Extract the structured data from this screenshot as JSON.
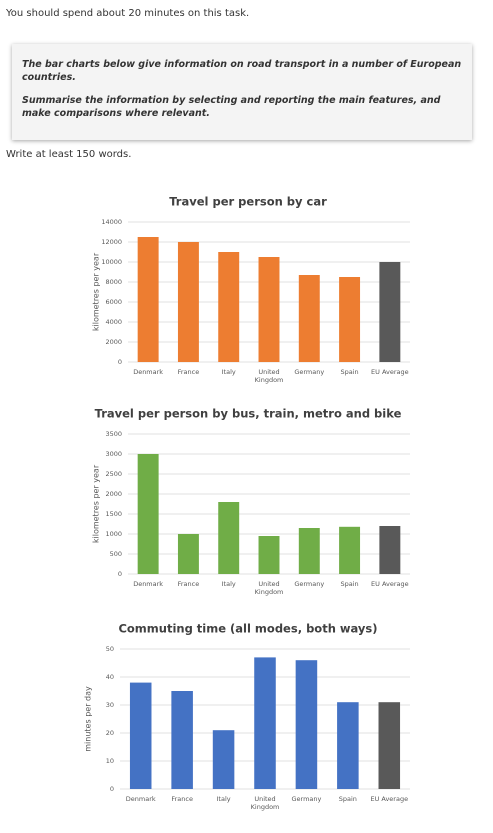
{
  "instruction": "You should spend about 20 minutes on this task.",
  "task_box": {
    "paragraphs": [
      "The bar charts below give information on road transport in a number of European countries.",
      "Summarise the information by selecting and reporting the main features, and make comparisons where relevant."
    ]
  },
  "word_count_note": "Write at least 150 words.",
  "chart_data": [
    {
      "type": "bar",
      "title": "Travel per person by car",
      "y_label": "kilometres per year",
      "categories": [
        "Denmark",
        "France",
        "Italy",
        "United Kingdom",
        "Germany",
        "Spain",
        "EU Average"
      ],
      "values": [
        12500,
        12000,
        11000,
        10500,
        8700,
        8500,
        10000
      ],
      "colors": [
        "#ed7d31",
        "#ed7d31",
        "#ed7d31",
        "#ed7d31",
        "#ed7d31",
        "#ed7d31",
        "#595959"
      ],
      "ylim": [
        0,
        14000
      ],
      "yticks": [
        0,
        2000,
        4000,
        6000,
        8000,
        10000,
        12000,
        14000
      ],
      "grid": true
    },
    {
      "type": "bar",
      "title": "Travel per person by bus, train, metro and bike",
      "y_label": "kilometres per year",
      "categories": [
        "Denmark",
        "France",
        "Italy",
        "United Kingdom",
        "Germany",
        "Spain",
        "EU Average"
      ],
      "values": [
        3000,
        1000,
        1800,
        950,
        1150,
        1180,
        1200
      ],
      "colors": [
        "#70ad47",
        "#70ad47",
        "#70ad47",
        "#70ad47",
        "#70ad47",
        "#70ad47",
        "#595959"
      ],
      "ylim": [
        0,
        3500
      ],
      "yticks": [
        0,
        500,
        1000,
        1500,
        2000,
        2500,
        3000,
        3500
      ],
      "grid": true
    },
    {
      "type": "bar",
      "title": "Commuting time (all modes, both ways)",
      "y_label": "minutes per day",
      "categories": [
        "Denmark",
        "France",
        "Italy",
        "United Kingdom",
        "Germany",
        "Spain",
        "EU Average"
      ],
      "values": [
        38,
        35,
        21,
        47,
        46,
        31,
        31
      ],
      "colors": [
        "#4472c4",
        "#4472c4",
        "#4472c4",
        "#4472c4",
        "#4472c4",
        "#4472c4",
        "#595959"
      ],
      "ylim": [
        0,
        50
      ],
      "yticks": [
        0,
        10,
        20,
        30,
        40,
        50
      ],
      "grid": true
    }
  ]
}
